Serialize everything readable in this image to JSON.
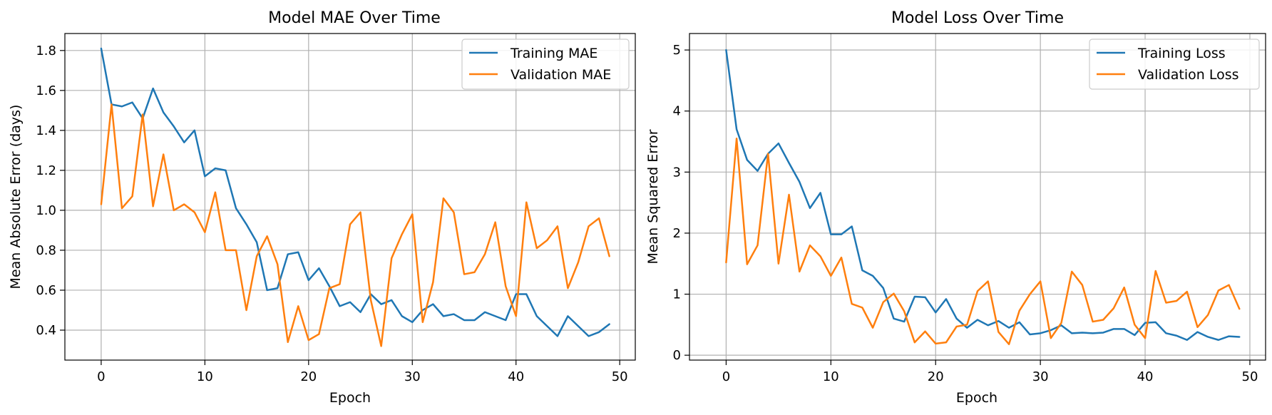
{
  "chart_data": [
    {
      "type": "line",
      "title": "Model MAE Over Time",
      "xlabel": "Epoch",
      "ylabel": "Mean Absolute Error (days)",
      "xlim": [
        -3.5,
        51.5
      ],
      "ylim": [
        0.25,
        1.885
      ],
      "xticks": [
        0,
        10,
        20,
        30,
        40,
        50
      ],
      "yticks": [
        0.4,
        0.6,
        0.8,
        1.0,
        1.2,
        1.4,
        1.6,
        1.8
      ],
      "ytick_labels": [
        "0.4",
        "0.6",
        "0.8",
        "1.0",
        "1.2",
        "1.4",
        "1.6",
        "1.8"
      ],
      "grid": true,
      "legend": "upper right",
      "x": [
        0,
        1,
        2,
        3,
        4,
        5,
        6,
        7,
        8,
        9,
        10,
        11,
        12,
        13,
        14,
        15,
        16,
        17,
        18,
        19,
        20,
        21,
        22,
        23,
        24,
        25,
        26,
        27,
        28,
        29,
        30,
        31,
        32,
        33,
        34,
        35,
        36,
        37,
        38,
        39,
        40,
        41,
        42,
        43,
        44,
        45,
        46,
        47,
        48,
        49
      ],
      "series": [
        {
          "name": "Training MAE",
          "color": "#1f77b4",
          "values": [
            1.81,
            1.53,
            1.52,
            1.54,
            1.46,
            1.61,
            1.49,
            1.42,
            1.34,
            1.4,
            1.17,
            1.21,
            1.2,
            1.01,
            0.93,
            0.84,
            0.6,
            0.61,
            0.78,
            0.79,
            0.65,
            0.71,
            0.62,
            0.52,
            0.54,
            0.49,
            0.58,
            0.53,
            0.55,
            0.47,
            0.44,
            0.5,
            0.53,
            0.47,
            0.48,
            0.45,
            0.45,
            0.49,
            0.47,
            0.45,
            0.58,
            0.58,
            0.47,
            0.42,
            0.37,
            0.47,
            0.42,
            0.37,
            0.39,
            0.43
          ]
        },
        {
          "name": "Validation MAE",
          "color": "#ff7f0e",
          "values": [
            1.03,
            1.53,
            1.01,
            1.07,
            1.48,
            1.02,
            1.28,
            1.0,
            1.03,
            0.99,
            0.89,
            1.09,
            0.8,
            0.8,
            0.5,
            0.77,
            0.87,
            0.73,
            0.34,
            0.52,
            0.35,
            0.38,
            0.61,
            0.63,
            0.93,
            0.99,
            0.55,
            0.32,
            0.76,
            0.88,
            0.98,
            0.44,
            0.64,
            1.06,
            0.99,
            0.68,
            0.69,
            0.78,
            0.94,
            0.62,
            0.47,
            1.04,
            0.81,
            0.85,
            0.92,
            0.61,
            0.74,
            0.92,
            0.96,
            0.77
          ]
        }
      ]
    },
    {
      "type": "line",
      "title": "Model Loss Over Time",
      "xlabel": "Epoch",
      "ylabel": "Mean Squared Error",
      "xlim": [
        -3.5,
        51.5
      ],
      "ylim": [
        -0.08,
        5.27
      ],
      "xticks": [
        0,
        10,
        20,
        30,
        40,
        50
      ],
      "yticks": [
        0,
        1,
        2,
        3,
        4,
        5
      ],
      "ytick_labels": [
        "0",
        "1",
        "2",
        "3",
        "4",
        "5"
      ],
      "grid": true,
      "legend": "upper right",
      "x": [
        0,
        1,
        2,
        3,
        4,
        5,
        6,
        7,
        8,
        9,
        10,
        11,
        12,
        13,
        14,
        15,
        16,
        17,
        18,
        19,
        20,
        21,
        22,
        23,
        24,
        25,
        26,
        27,
        28,
        29,
        30,
        31,
        32,
        33,
        34,
        35,
        36,
        37,
        38,
        39,
        40,
        41,
        42,
        43,
        44,
        45,
        46,
        47,
        48,
        49
      ],
      "series": [
        {
          "name": "Training Loss",
          "color": "#1f77b4",
          "values": [
            5.0,
            3.7,
            3.2,
            3.02,
            3.3,
            3.47,
            3.15,
            2.84,
            2.41,
            2.66,
            1.98,
            1.98,
            2.11,
            1.39,
            1.3,
            1.1,
            0.6,
            0.55,
            0.96,
            0.95,
            0.7,
            0.92,
            0.6,
            0.45,
            0.58,
            0.49,
            0.56,
            0.45,
            0.54,
            0.34,
            0.36,
            0.41,
            0.49,
            0.36,
            0.37,
            0.36,
            0.37,
            0.43,
            0.43,
            0.33,
            0.53,
            0.54,
            0.36,
            0.32,
            0.25,
            0.38,
            0.3,
            0.25,
            0.31,
            0.3
          ]
        },
        {
          "name": "Validation Loss",
          "color": "#ff7f0e",
          "values": [
            1.52,
            3.55,
            1.49,
            1.8,
            3.3,
            1.5,
            2.63,
            1.37,
            1.8,
            1.62,
            1.3,
            1.6,
            0.84,
            0.78,
            0.45,
            0.87,
            1.01,
            0.72,
            0.21,
            0.39,
            0.19,
            0.21,
            0.47,
            0.5,
            1.05,
            1.21,
            0.38,
            0.18,
            0.73,
            1.0,
            1.21,
            0.28,
            0.53,
            1.37,
            1.15,
            0.55,
            0.58,
            0.77,
            1.11,
            0.5,
            0.28,
            1.38,
            0.86,
            0.89,
            1.04,
            0.46,
            0.66,
            1.06,
            1.15,
            0.76
          ]
        }
      ]
    }
  ]
}
